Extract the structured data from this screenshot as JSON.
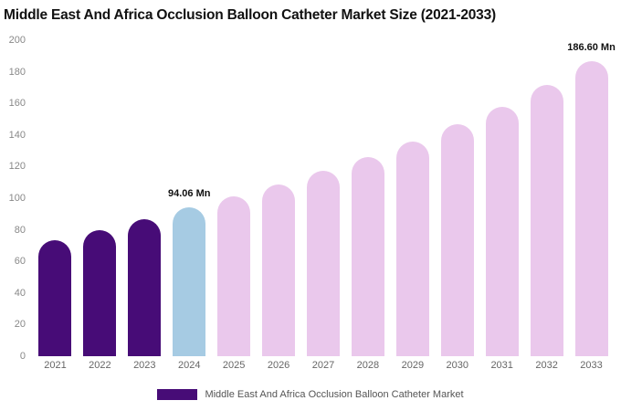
{
  "chart_data": {
    "type": "bar",
    "title": "Middle East And Africa Occlusion Balloon Catheter Market Size (2021-2033)",
    "categories": [
      "2021",
      "2022",
      "2023",
      "2024",
      "2025",
      "2026",
      "2027",
      "2028",
      "2029",
      "2030",
      "2031",
      "2032",
      "2033"
    ],
    "values": [
      73.5,
      80,
      86.5,
      94.06,
      101,
      108.5,
      117.5,
      126,
      136,
      147,
      158,
      171.5,
      186.6
    ],
    "ylim": [
      0,
      200
    ],
    "y_ticks": [
      0,
      20,
      40,
      60,
      80,
      100,
      120,
      140,
      160,
      180,
      200
    ],
    "grid": false,
    "legend_position": "bottom",
    "bar_colors": [
      "#470c77",
      "#470c77",
      "#470c77",
      "#a6cbe3",
      "#eac8ec",
      "#eac8ec",
      "#eac8ec",
      "#eac8ec",
      "#eac8ec",
      "#eac8ec",
      "#eac8ec",
      "#eac8ec",
      "#eac8ec"
    ],
    "annotations": [
      {
        "index": 3,
        "label": "94.06 Mn"
      },
      {
        "index": 12,
        "label": "186.60 Mn"
      }
    ],
    "legend": {
      "label": "Middle East And Africa Occlusion Balloon Catheter Market",
      "swatch_color": "#470c77"
    }
  }
}
